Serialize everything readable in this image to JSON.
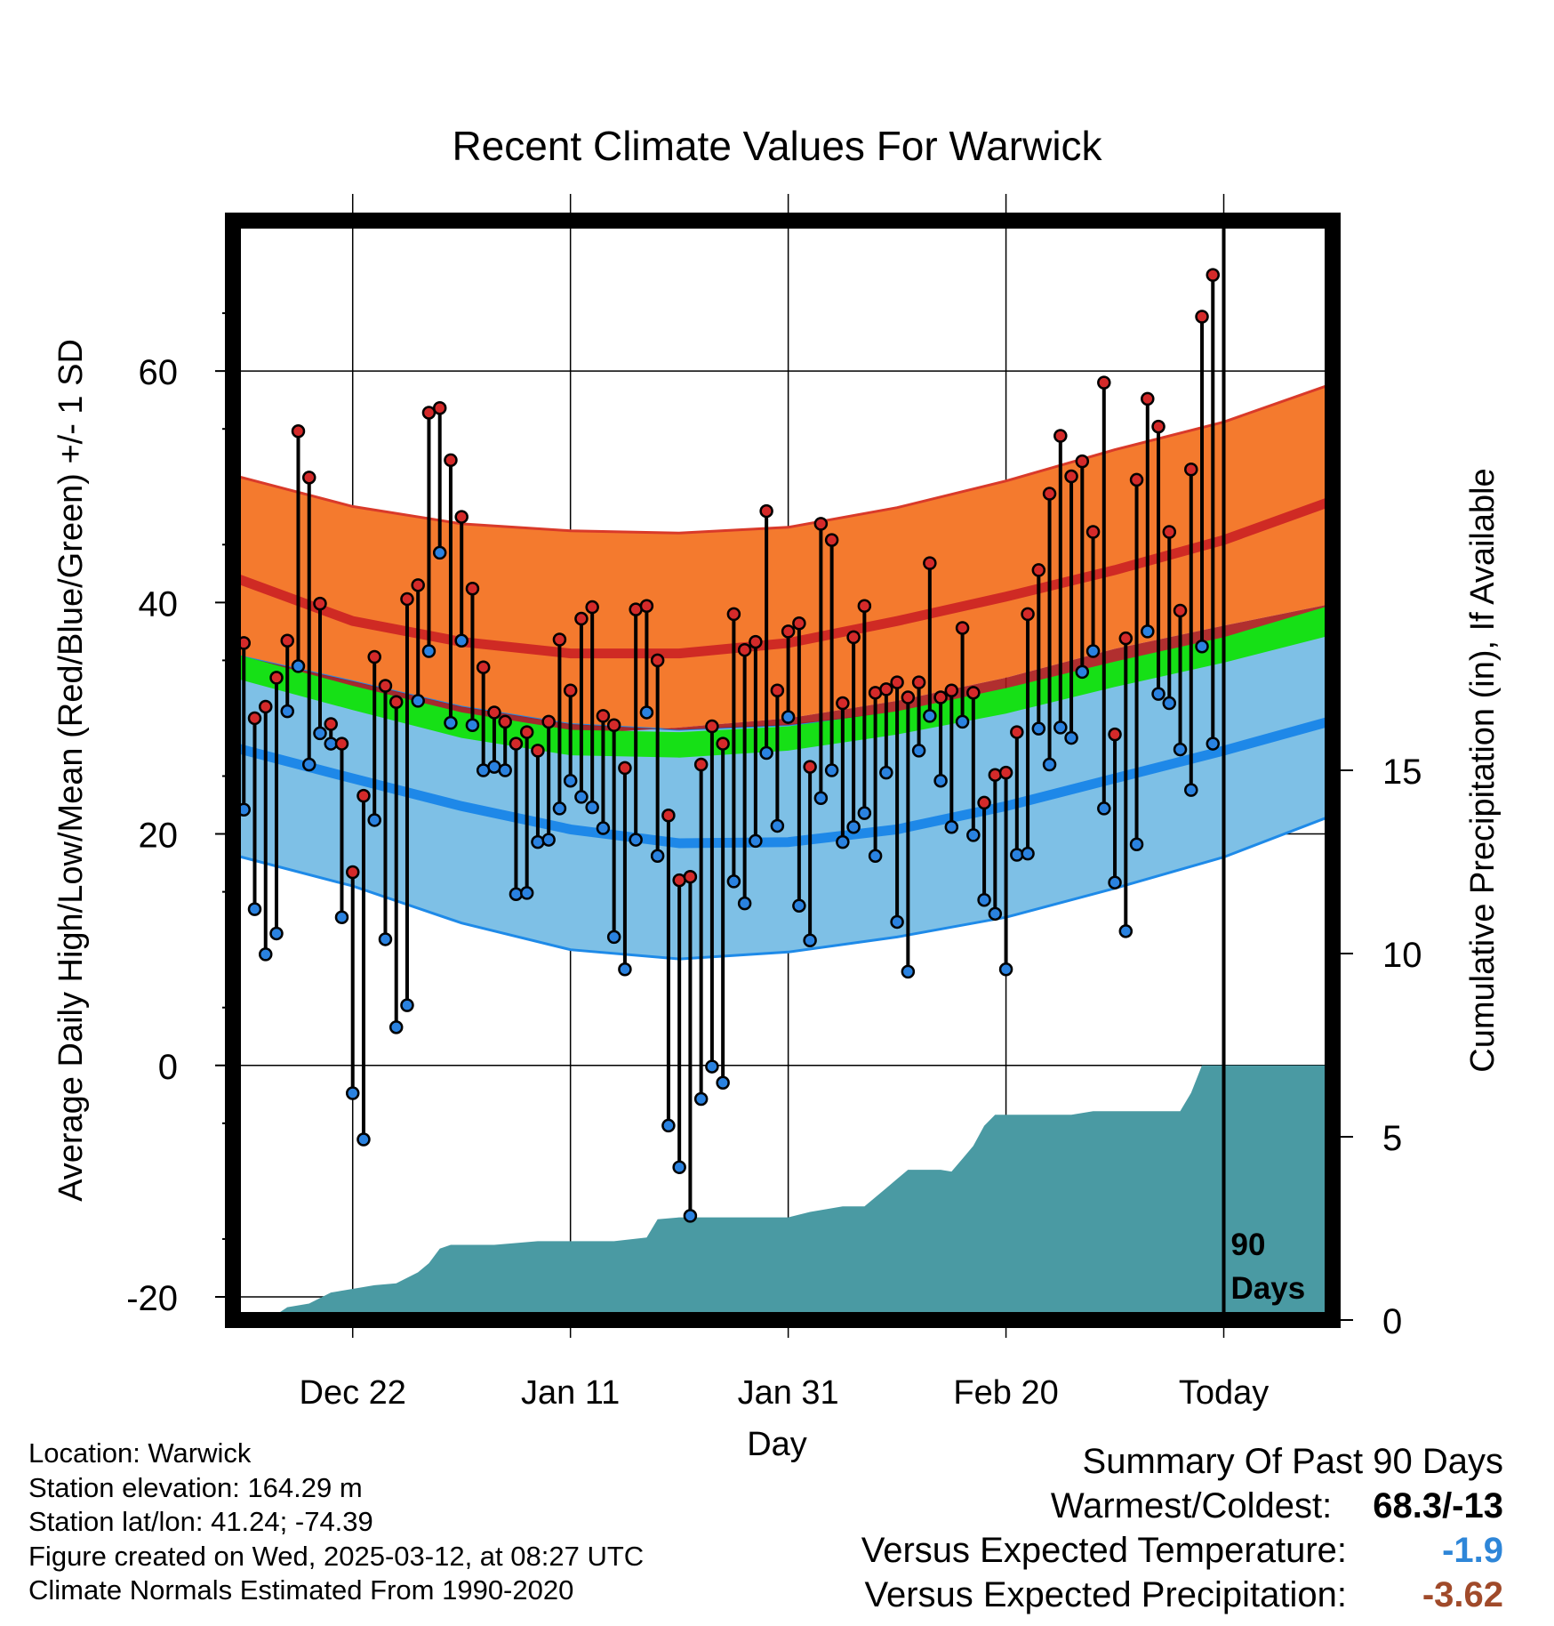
{
  "chart_data": {
    "type": "line",
    "title": "Recent Climate Values For Warwick",
    "xlabel": "Day",
    "ylabel": "Average Daily High/Low/Mean (Red/Blue/Green) +/- 1 SD",
    "y2label": "Cumulative Precipitation (in), If Available",
    "xlim": [
      -11,
      90
    ],
    "ylim": [
      -22,
      73
    ],
    "y2lim": [
      0,
      30
    ],
    "x_ticks": [
      {
        "x": 0,
        "label": "Dec 22"
      },
      {
        "x": 20,
        "label": "Jan 11"
      },
      {
        "x": 40,
        "label": "Jan 31"
      },
      {
        "x": 60,
        "label": "Feb 20"
      },
      {
        "x": 80,
        "label": "Today"
      }
    ],
    "y_ticks": [
      -20,
      0,
      20,
      40,
      60
    ],
    "y2_ticks": [
      0,
      5,
      10,
      15
    ],
    "marker_label": "90 Days",
    "grid": true,
    "normal_high": {
      "x": [
        -11,
        0,
        10,
        20,
        30,
        40,
        50,
        60,
        70,
        80,
        90
      ],
      "mean": [
        42.2,
        38.4,
        36.6,
        35.6,
        35.6,
        36.5,
        38.4,
        40.5,
        42.8,
        45.4,
        48.8
      ],
      "upper": [
        51.0,
        48.3,
        46.8,
        46.2,
        46.0,
        46.5,
        48.2,
        50.5,
        53.2,
        55.6,
        58.9
      ],
      "lower": [
        34.8,
        31.8,
        29.8,
        28.6,
        29.2,
        30.0,
        31.5,
        33.5,
        36.0,
        38.0,
        39.9
      ]
    },
    "normal_low": {
      "x": [
        -11,
        0,
        10,
        20,
        30,
        40,
        50,
        60,
        70,
        80,
        90
      ],
      "mean": [
        27.5,
        24.8,
        22.4,
        20.4,
        19.2,
        19.3,
        20.4,
        22.4,
        24.8,
        27.2,
        29.8
      ],
      "upper": [
        35.5,
        33.2,
        31.0,
        29.5,
        29.0,
        29.4,
        30.5,
        32.3,
        34.5,
        36.3,
        37.8
      ],
      "lower": [
        18.2,
        15.5,
        12.3,
        10.0,
        9.2,
        9.8,
        11.1,
        12.8,
        15.3,
        18.0,
        21.6
      ]
    },
    "normal_mean": {
      "x": [
        -11,
        0,
        10,
        20,
        30,
        40,
        50,
        60,
        70,
        80,
        90
      ],
      "upper": [
        35.6,
        32.8,
        30.5,
        29.0,
        28.8,
        29.3,
        30.6,
        32.6,
        34.9,
        37.0,
        39.8
      ],
      "lower": [
        33.5,
        30.7,
        28.3,
        26.8,
        26.6,
        27.2,
        28.6,
        30.4,
        32.7,
        34.8,
        37.2
      ]
    },
    "series": [
      {
        "name": "High",
        "color": "#d42a2a",
        "values": [
          36.5,
          30.0,
          31.0,
          33.5,
          36.7,
          54.8,
          50.8,
          39.9,
          29.5,
          27.8,
          16.7,
          23.3,
          35.3,
          32.8,
          31.4,
          40.3,
          41.5,
          56.4,
          56.8,
          52.3,
          47.4,
          41.2,
          34.4,
          30.5,
          29.7,
          27.8,
          28.8,
          27.2,
          29.7,
          36.8,
          32.4,
          38.6,
          39.6,
          30.2,
          29.4,
          25.7,
          39.4,
          39.7,
          35.0,
          21.6,
          16.0,
          16.3,
          26.0,
          29.3,
          27.8,
          39.0,
          35.9,
          36.6,
          47.9,
          32.4,
          37.5,
          38.2,
          25.8,
          46.8,
          45.4,
          31.3,
          37.0,
          39.7,
          32.2,
          32.5,
          33.1,
          31.8,
          33.1,
          43.4,
          31.8,
          32.4,
          37.8,
          32.2,
          22.7,
          25.1,
          25.3,
          28.8,
          39.0,
          42.8,
          49.4,
          54.4,
          50.9,
          52.2,
          46.1,
          59.0,
          28.6,
          36.9,
          50.6,
          57.6,
          55.2,
          46.1,
          39.3,
          51.5,
          64.7,
          68.3
        ]
      },
      {
        "name": "Low",
        "color": "#2a82e0",
        "values": [
          22.1,
          13.5,
          9.6,
          11.4,
          30.6,
          34.5,
          26.0,
          28.7,
          27.8,
          12.8,
          -2.4,
          -6.4,
          21.2,
          10.9,
          3.3,
          5.2,
          31.5,
          35.8,
          44.3,
          29.6,
          36.7,
          29.4,
          25.5,
          25.8,
          25.5,
          14.8,
          14.9,
          19.3,
          19.5,
          22.2,
          24.6,
          23.2,
          22.3,
          20.5,
          11.1,
          8.3,
          19.5,
          30.5,
          18.1,
          -5.2,
          -8.8,
          -13.0,
          -2.9,
          -0.1,
          -1.5,
          15.9,
          14.0,
          19.4,
          27.0,
          20.7,
          30.1,
          13.8,
          10.8,
          23.1,
          25.5,
          19.3,
          20.6,
          21.8,
          18.1,
          25.3,
          12.4,
          8.1,
          27.2,
          30.2,
          24.6,
          20.6,
          29.7,
          19.9,
          14.3,
          13.1,
          8.3,
          18.2,
          18.3,
          29.1,
          26.0,
          29.2,
          28.3,
          34.0,
          35.8,
          22.2,
          15.8,
          11.6,
          19.1,
          37.5,
          32.1,
          31.3,
          27.3,
          23.8,
          36.2,
          27.8
        ]
      },
      {
        "name": "Cumulative Precipitation",
        "color": "#4a9aa3",
        "y_axis": "right",
        "x": [
          -7,
          -6,
          -4,
          -2,
          0,
          2,
          4,
          6,
          7,
          8,
          9,
          10,
          13,
          17,
          20,
          24,
          27,
          28,
          30,
          35,
          40,
          42,
          45,
          47,
          49,
          50,
          51,
          54,
          55,
          56,
          57,
          58,
          59,
          62,
          66,
          68,
          73,
          76,
          77,
          78,
          84,
          90
        ],
        "values": [
          0.15,
          0.35,
          0.45,
          0.75,
          0.85,
          0.95,
          1.0,
          1.3,
          1.55,
          1.95,
          2.05,
          2.05,
          2.05,
          2.15,
          2.15,
          2.15,
          2.25,
          2.75,
          2.8,
          2.8,
          2.8,
          2.95,
          3.1,
          3.1,
          3.6,
          3.85,
          4.1,
          4.1,
          4.05,
          4.4,
          4.75,
          5.3,
          5.6,
          5.6,
          5.6,
          5.7,
          5.7,
          5.7,
          6.2,
          6.95,
          6.95,
          6.95
        ]
      }
    ]
  },
  "info": {
    "location": "Location: Warwick",
    "elevation": "Station elevation: 164.29 m",
    "latlon": "Station lat/lon: 41.24; -74.39",
    "created": "Figure created on Wed, 2025-03-12, at 08:27 UTC",
    "normals": "Climate Normals Estimated From 1990-2020"
  },
  "summary": {
    "title": "Summary Of Past 90 Days",
    "warmest_label": "Warmest/Coldest:",
    "warmest_value": "68.3/-13",
    "temp_label": "Versus Expected Temperature:",
    "temp_value": "-1.9",
    "temp_color": "#2e86d8",
    "precip_label": "Versus Expected Precipitation:",
    "precip_value": "-3.62",
    "precip_color": "#a04a2a"
  },
  "colors": {
    "high_band": "#f47a2e",
    "high_mean": "#cf2a24",
    "low_band": "#7ec0e6",
    "low_mean": "#1e88e8",
    "mean_band": "#16e016",
    "precip": "#4a9aa3"
  }
}
